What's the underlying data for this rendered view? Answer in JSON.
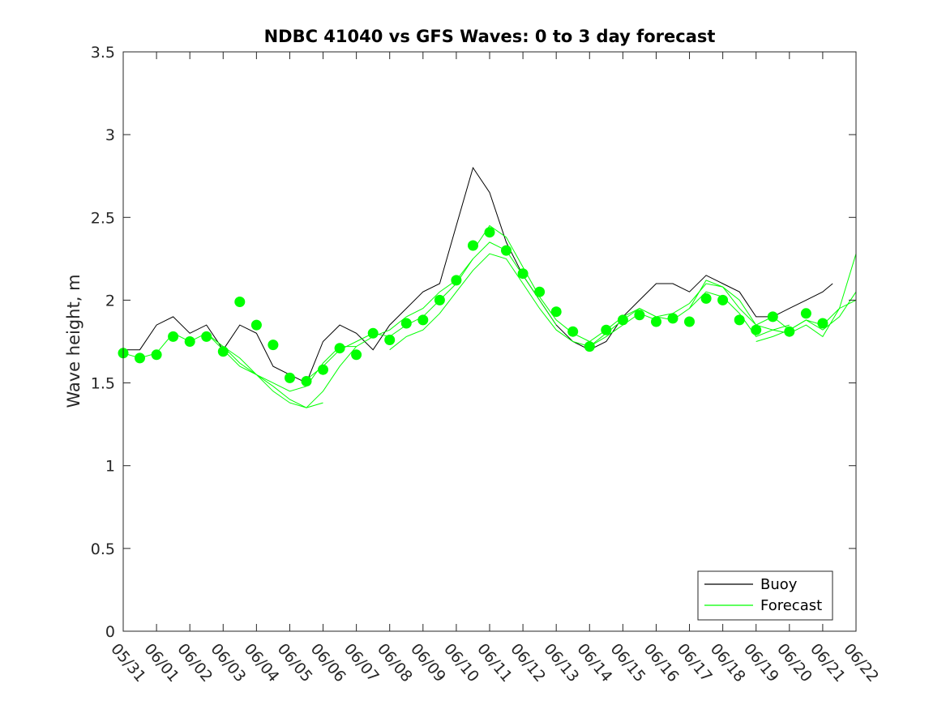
{
  "chart_data": {
    "type": "line",
    "title": "NDBC 41040 vs GFS Waves: 0 to 3 day forecast",
    "xlabel": "",
    "ylabel": "Wave height, m",
    "ylim": [
      0,
      3.5
    ],
    "yticks": [
      "0",
      "0.5",
      "1",
      "1.5",
      "2",
      "2.5",
      "3",
      "3.5"
    ],
    "xlim_days": [
      0,
      22
    ],
    "xticks": [
      "05/31",
      "06/01",
      "06/02",
      "06/03",
      "06/04",
      "06/05",
      "06/06",
      "06/07",
      "06/08",
      "06/09",
      "06/10",
      "06/11",
      "06/12",
      "06/13",
      "06/14",
      "06/15",
      "06/16",
      "06/17",
      "06/18",
      "06/19",
      "06/20",
      "06/21",
      "06/22"
    ],
    "legend": {
      "placement": "bottom-right",
      "entries": [
        "Buoy",
        "Forecast"
      ]
    },
    "colors": {
      "buoy": "#000000",
      "forecast": "#00ff00",
      "axes": "#262626"
    },
    "series": [
      {
        "name": "Buoy",
        "x_days": [
          0,
          0.5,
          1,
          1.5,
          2,
          2.5,
          3,
          3.5,
          4,
          4.5,
          5,
          5.5,
          6,
          6.5,
          7,
          7.5,
          8,
          8.5,
          9,
          9.5,
          10,
          10.5,
          11,
          11.5,
          12,
          12.5,
          13,
          13.5,
          14,
          14.5,
          15,
          15.5,
          16,
          16.5,
          17,
          17.5,
          18,
          18.5,
          19,
          19.5,
          20,
          20.5,
          21,
          21.3
        ],
        "y": [
          1.7,
          1.7,
          1.85,
          1.9,
          1.8,
          1.85,
          1.7,
          1.85,
          1.8,
          1.6,
          1.55,
          1.5,
          1.75,
          1.85,
          1.8,
          1.7,
          1.85,
          1.95,
          2.05,
          2.1,
          2.45,
          2.8,
          2.65,
          2.35,
          2.15,
          2.0,
          1.85,
          1.75,
          1.7,
          1.75,
          1.9,
          2.0,
          2.1,
          2.1,
          2.05,
          2.15,
          2.1,
          2.05,
          1.9,
          1.9,
          1.95,
          2.0,
          2.05,
          2.1
        ]
      },
      {
        "name": "Forecast",
        "runs": [
          {
            "x_days": [
              0,
              0.5,
              1,
              1.5,
              2,
              2.5,
              3,
              3.5,
              4,
              4.5,
              5,
              5.5,
              6,
              6.5,
              7
            ],
            "y": [
              1.68,
              1.65,
              1.68,
              1.8,
              1.75,
              1.8,
              1.72,
              1.62,
              1.55,
              1.5,
              1.45,
              1.48,
              1.62,
              1.72,
              1.72
            ]
          },
          {
            "x_days": [
              2.5,
              3,
              3.5,
              4,
              4.5,
              5,
              5.5,
              6,
              6.5,
              7,
              7.5,
              8,
              8.5,
              9,
              9.5,
              10,
              10.5
            ],
            "y": [
              1.8,
              1.7,
              1.6,
              1.55,
              1.45,
              1.38,
              1.35,
              1.45,
              1.6,
              1.72,
              1.78,
              1.82,
              1.9,
              1.95,
              2.05,
              2.12,
              2.25
            ]
          },
          {
            "x_days": [
              3,
              3.5,
              4,
              4.5,
              5,
              5.5,
              6
            ],
            "y": [
              1.72,
              1.65,
              1.55,
              1.48,
              1.4,
              1.35,
              1.38
            ]
          },
          {
            "x_days": [
              5.5,
              6,
              6.5,
              7,
              7.5,
              8,
              8.5,
              9,
              9.5,
              10,
              10.5,
              11,
              11.5,
              12,
              12.5,
              13
            ],
            "y": [
              1.52,
              1.6,
              1.7,
              1.75,
              1.8,
              1.78,
              1.85,
              1.9,
              2.0,
              2.1,
              2.25,
              2.35,
              2.3,
              2.15,
              2.0,
              1.85
            ]
          },
          {
            "x_days": [
              8,
              8.5,
              9,
              9.5,
              10,
              10.5,
              11,
              11.5,
              12,
              12.5,
              13,
              13.5,
              14,
              14.5,
              15,
              15.5,
              16
            ],
            "y": [
              1.7,
              1.78,
              1.82,
              1.92,
              2.05,
              2.18,
              2.28,
              2.25,
              2.1,
              1.95,
              1.82,
              1.75,
              1.72,
              1.78,
              1.85,
              1.92,
              1.88
            ]
          },
          {
            "x_days": [
              10.5,
              11,
              11.5,
              12,
              12.5,
              13,
              13.5,
              14,
              14.5,
              15,
              15.5,
              16,
              16.5,
              17,
              17.5,
              18,
              18.5,
              19,
              19.5,
              20
            ],
            "y": [
              2.3,
              2.45,
              2.38,
              2.2,
              2.02,
              1.88,
              1.8,
              1.75,
              1.82,
              1.9,
              1.95,
              1.9,
              1.92,
              1.98,
              2.1,
              2.08,
              1.95,
              1.85,
              1.82,
              1.85
            ]
          },
          {
            "x_days": [
              14,
              14.5,
              15,
              15.5,
              16,
              16.5,
              17,
              17.5,
              18,
              18.5,
              19,
              19.5,
              20,
              20.5,
              21,
              21.5,
              22
            ],
            "y": [
              1.72,
              1.8,
              1.88,
              1.95,
              1.9,
              1.88,
              1.95,
              2.12,
              2.08,
              2.0,
              1.85,
              1.9,
              1.82,
              1.88,
              1.82,
              1.9,
              2.05
            ]
          },
          {
            "x_days": [
              17,
              17.5,
              18,
              18.5,
              19,
              19.5,
              20,
              20.5,
              21,
              21.5,
              22
            ],
            "y": [
              1.95,
              2.05,
              2.02,
              1.92,
              1.78,
              1.82,
              1.8,
              1.85,
              1.78,
              1.95,
              2.28
            ]
          },
          {
            "x_days": [
              19,
              19.5,
              20,
              20.5,
              21,
              21.5,
              22
            ],
            "y": [
              1.75,
              1.78,
              1.82,
              1.88,
              1.85,
              1.95,
              2.0
            ]
          }
        ],
        "analysis_points": {
          "x_days": [
            0,
            0.5,
            1,
            1.5,
            2,
            2.5,
            3,
            3.5,
            4,
            4.5,
            5,
            5.5,
            6,
            6.5,
            7,
            7.5,
            8,
            8.5,
            9,
            9.5,
            10,
            10.5,
            11,
            11.5,
            12,
            12.5,
            13,
            13.5,
            14,
            14.5,
            15,
            15.5,
            16,
            16.5,
            17,
            17.5,
            18,
            18.5,
            19,
            19.5,
            20,
            20.5,
            21
          ],
          "y": [
            1.68,
            1.65,
            1.67,
            1.78,
            1.75,
            1.78,
            1.69,
            1.99,
            1.85,
            1.73,
            1.53,
            1.51,
            1.58,
            1.71,
            1.67,
            1.8,
            1.76,
            1.86,
            1.88,
            2.0,
            2.12,
            2.33,
            2.41,
            2.3,
            2.16,
            2.05,
            1.93,
            1.81,
            1.72,
            1.82,
            1.88,
            1.91,
            1.87,
            1.89,
            1.87,
            2.01,
            2.0,
            1.88,
            1.82,
            1.9,
            1.81,
            1.92,
            1.86
          ]
        }
      }
    ]
  }
}
